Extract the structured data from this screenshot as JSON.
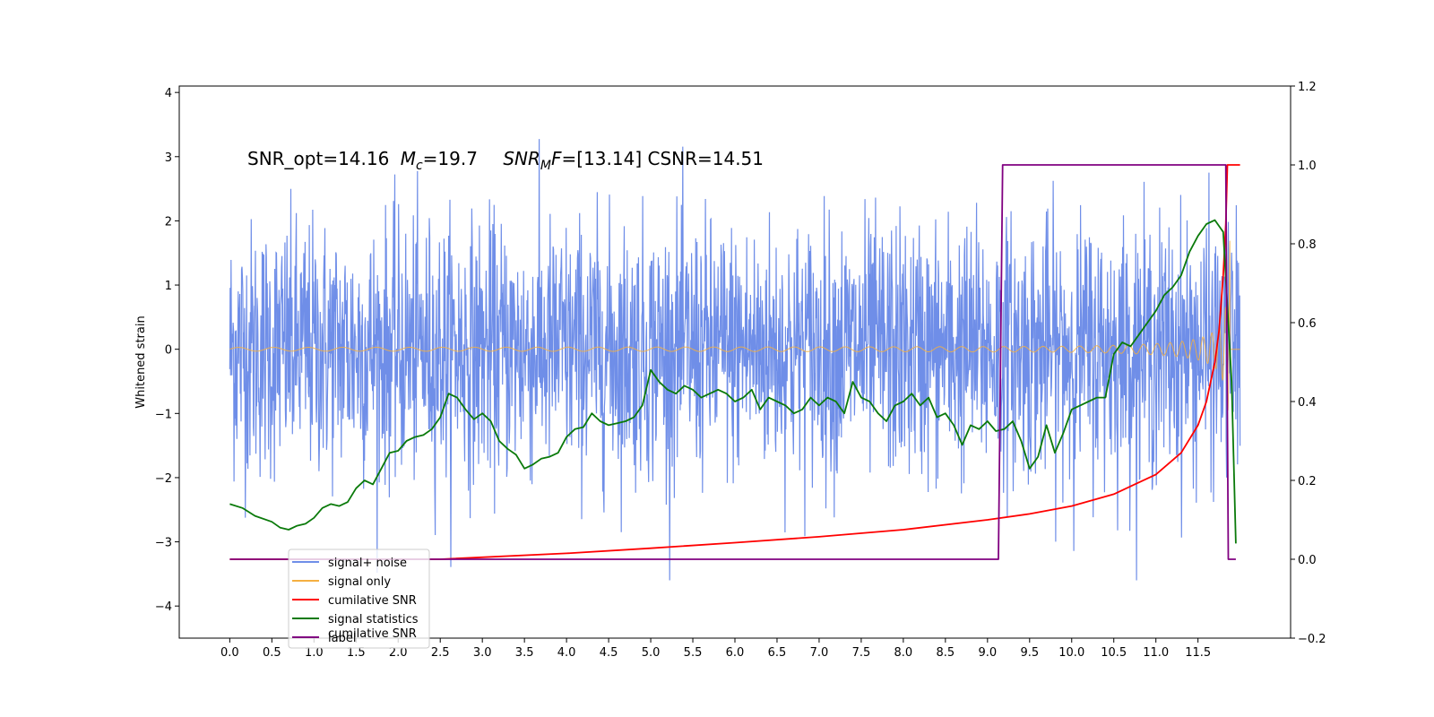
{
  "chart_data": {
    "type": "line",
    "title": "",
    "annotation": "SNR_opt=14.16 M_c=19.7    SNR_MF=[13.14] CSNR=14.51",
    "annotation_parts": {
      "snr_opt": "SNR_opt=14.16",
      "mc_sym": "M",
      "mc_sub": "c",
      "mc_val": "=19.7",
      "snrmf_sym": "SNR",
      "snrmf_sub": "M",
      "snrmf_f": "F",
      "snrmf_val": "=[13.14] CSNR=14.51"
    },
    "xlabel": "",
    "ylabel": "Whitened strain",
    "y2label": "",
    "xlim": [
      -0.6,
      12.6
    ],
    "ylim": [
      -4.5,
      4.1
    ],
    "y2lim": [
      -0.2,
      1.2
    ],
    "xticks": [
      "0.0",
      "0.5",
      "1.0",
      "1.5",
      "2.0",
      "2.5",
      "3.0",
      "3.5",
      "4.0",
      "4.5",
      "5.0",
      "5.5",
      "6.0",
      "6.5",
      "7.0",
      "7.5",
      "8.0",
      "8.5",
      "9.0",
      "9.5",
      "10.0",
      "10.5",
      "11.0",
      "11.5"
    ],
    "yticks": [
      "4",
      "3",
      "2",
      "1",
      "0",
      "−1",
      "−2",
      "−3",
      "−4"
    ],
    "y2ticks": [
      "1.2",
      "1.0",
      "0.8",
      "0.6",
      "0.4",
      "0.2",
      "0.0",
      "−0.2"
    ],
    "grid": false,
    "legend_position": "lower-left",
    "series": [
      {
        "name": "signal+ noise",
        "color": "#6f8ee8",
        "axis": "left",
        "description": "whitened noise plus signal, roughly Gaussian with std ~1, peaks near ±3.5, spanning t=0 to 12"
      },
      {
        "name": "signal only",
        "color": "#f5b041",
        "axis": "left",
        "description": "chirp signal: near-zero amplitude early, growing to ~±2 near t=11.85 then ending"
      },
      {
        "name": "cumilative SNR",
        "color": "#ff0000",
        "axis": "right",
        "x": [
          0.0,
          2.5,
          4.0,
          5.0,
          6.0,
          7.0,
          8.0,
          9.0,
          9.5,
          10.0,
          10.5,
          11.0,
          11.3,
          11.5,
          11.6,
          11.7,
          11.75,
          11.8,
          11.83,
          11.85,
          11.88,
          12.0
        ],
        "y": [
          0.0,
          0.0,
          0.015,
          0.028,
          0.042,
          0.057,
          0.075,
          0.1,
          0.115,
          0.135,
          0.165,
          0.215,
          0.27,
          0.34,
          0.4,
          0.5,
          0.58,
          0.72,
          0.85,
          1.0,
          1.0,
          1.0
        ]
      },
      {
        "name": "signal statistics",
        "color": "#0a7a0a",
        "axis": "right",
        "x": [
          0.0,
          0.15,
          0.3,
          0.5,
          0.6,
          0.7,
          0.8,
          0.9,
          1.0,
          1.1,
          1.2,
          1.3,
          1.4,
          1.5,
          1.6,
          1.7,
          1.8,
          1.9,
          2.0,
          2.1,
          2.2,
          2.3,
          2.4,
          2.5,
          2.6,
          2.7,
          2.8,
          2.9,
          3.0,
          3.1,
          3.2,
          3.3,
          3.4,
          3.5,
          3.6,
          3.7,
          3.8,
          3.9,
          4.0,
          4.1,
          4.2,
          4.3,
          4.4,
          4.5,
          4.6,
          4.7,
          4.8,
          4.9,
          5.0,
          5.1,
          5.2,
          5.3,
          5.4,
          5.5,
          5.6,
          5.7,
          5.8,
          5.9,
          6.0,
          6.1,
          6.2,
          6.3,
          6.4,
          6.5,
          6.6,
          6.7,
          6.8,
          6.9,
          7.0,
          7.1,
          7.2,
          7.3,
          7.4,
          7.5,
          7.6,
          7.7,
          7.8,
          7.9,
          8.0,
          8.1,
          8.2,
          8.3,
          8.4,
          8.5,
          8.6,
          8.7,
          8.8,
          8.9,
          9.0,
          9.1,
          9.2,
          9.3,
          9.4,
          9.5,
          9.6,
          9.7,
          9.8,
          9.9,
          10.0,
          10.1,
          10.2,
          10.3,
          10.4,
          10.5,
          10.6,
          10.7,
          10.8,
          10.9,
          11.0,
          11.1,
          11.2,
          11.3,
          11.4,
          11.5,
          11.6,
          11.7,
          11.8,
          11.9,
          11.95
        ],
        "y": [
          0.14,
          0.13,
          0.11,
          0.095,
          0.08,
          0.075,
          0.085,
          0.09,
          0.105,
          0.13,
          0.14,
          0.135,
          0.145,
          0.18,
          0.2,
          0.19,
          0.23,
          0.27,
          0.275,
          0.3,
          0.31,
          0.315,
          0.33,
          0.36,
          0.42,
          0.41,
          0.38,
          0.355,
          0.37,
          0.35,
          0.3,
          0.28,
          0.265,
          0.23,
          0.24,
          0.255,
          0.26,
          0.27,
          0.31,
          0.33,
          0.335,
          0.37,
          0.35,
          0.34,
          0.345,
          0.35,
          0.36,
          0.39,
          0.48,
          0.45,
          0.43,
          0.42,
          0.44,
          0.43,
          0.41,
          0.42,
          0.43,
          0.42,
          0.4,
          0.41,
          0.43,
          0.38,
          0.41,
          0.4,
          0.39,
          0.37,
          0.38,
          0.41,
          0.39,
          0.41,
          0.4,
          0.37,
          0.45,
          0.41,
          0.4,
          0.37,
          0.35,
          0.39,
          0.4,
          0.42,
          0.39,
          0.41,
          0.36,
          0.37,
          0.34,
          0.29,
          0.34,
          0.33,
          0.35,
          0.325,
          0.33,
          0.35,
          0.3,
          0.23,
          0.26,
          0.34,
          0.27,
          0.32,
          0.38,
          0.39,
          0.4,
          0.41,
          0.41,
          0.52,
          0.55,
          0.54,
          0.57,
          0.6,
          0.63,
          0.67,
          0.69,
          0.72,
          0.78,
          0.82,
          0.85,
          0.86,
          0.83,
          0.45,
          0.04
        ]
      },
      {
        "name": "label",
        "color": "#800080",
        "axis": "right",
        "x": [
          0.0,
          9.13,
          9.18,
          11.83,
          11.86,
          11.95
        ],
        "y": [
          0.0,
          0.0,
          1.0,
          1.0,
          0.0,
          0.0
        ]
      }
    ],
    "legend_hidden_text": "cumilative SNR"
  }
}
